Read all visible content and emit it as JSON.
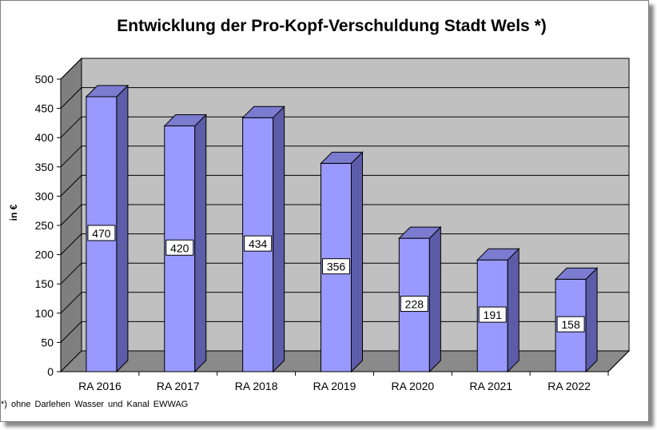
{
  "chart_data": {
    "type": "bar",
    "title": "Entwicklung der Pro-Kopf-Verschuldung Stadt Wels *)",
    "ylabel": "in €",
    "xlabel": "",
    "categories": [
      "RA 2016",
      "RA 2017",
      "RA 2018",
      "RA 2019",
      "RA 2020",
      "RA 2021",
      "RA 2022"
    ],
    "values": [
      470,
      420,
      434,
      356,
      228,
      191,
      158
    ],
    "ylim": [
      0,
      500
    ],
    "yticks": [
      0,
      50,
      100,
      150,
      200,
      250,
      300,
      350,
      400,
      450,
      500
    ],
    "grid": true,
    "legend": "none",
    "colors": {
      "bar_front": "#9999ff",
      "bar_side": "#5c5ca8",
      "bar_top": "#7b7bd0",
      "wall": "#c0c0c0",
      "side_wall": "#7f7f7f",
      "floor": "#8a8a8a"
    }
  },
  "footnote": "*) ohne Darlehen Wasser und Kanal EWWAG"
}
